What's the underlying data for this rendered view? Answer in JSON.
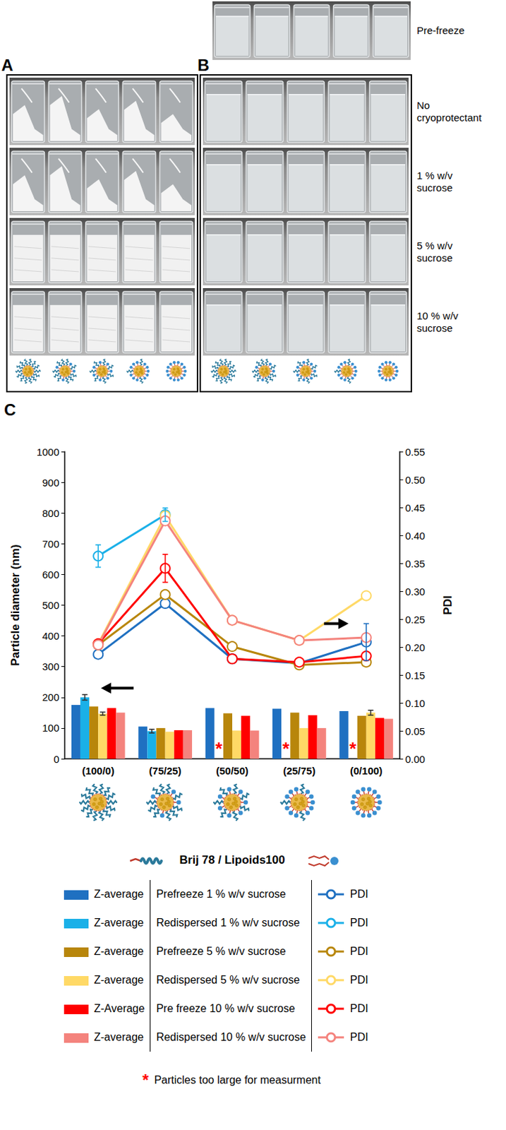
{
  "photos": {
    "top_label": "Pre-freeze",
    "panels": [
      "A",
      "B"
    ],
    "row_labels": [
      "No cryoprotectant",
      "1 % w/v sucrose",
      "5 % w/v sucrose",
      "10 % w/v sucrose"
    ]
  },
  "chart_data": {
    "panel": "C",
    "type": "bar",
    "categories": [
      "(100/0)",
      "(75/25)",
      "(50/50)",
      "(25/75)",
      "(0/100)"
    ],
    "xlabel": "Brij 78 / Lipoids100",
    "ylabel": "Particle diameter (nm)",
    "y2label": "PDI",
    "ylim": [
      0,
      1000
    ],
    "yticks": [
      0,
      100,
      200,
      300,
      400,
      500,
      600,
      700,
      800,
      900,
      1000
    ],
    "y2lim": [
      0,
      0.55
    ],
    "y2ticks": [
      {
        "value": 0,
        "label": "0.00"
      },
      0.05,
      {
        "value": 0.1,
        "label": "0.10"
      },
      0.15,
      {
        "value": 0.2,
        "label": "0.20"
      },
      0.25,
      {
        "value": 0.3,
        "label": "0.30"
      },
      0.35,
      {
        "value": 0.4,
        "label": "0.40"
      },
      0.45,
      {
        "value": 0.5,
        "label": "0.50"
      },
      0.55
    ],
    "grid": false,
    "legend": "bottom",
    "series": [
      {
        "name": "Prefreeze 1 % w/v sucrose",
        "legend_label": "Z-average",
        "type": "bar",
        "color": "#1f70c1",
        "values": [
          175,
          105,
          165,
          163,
          155
        ]
      },
      {
        "name": "Redispersed 1 % w/v sucrose",
        "legend_label": "Z-average",
        "type": "bar",
        "color": "#1ab0e8",
        "values": [
          200,
          90,
          null,
          null,
          null
        ],
        "errors": [
          9,
          6,
          null,
          null,
          null
        ]
      },
      {
        "name": "Prefreeze 5 % w/v sucrose",
        "legend_label": "Z-average",
        "type": "bar",
        "color": "#b8860b",
        "values": [
          170,
          100,
          148,
          150,
          140
        ]
      },
      {
        "name": "Redispersed 5 % w/v sucrose",
        "legend_label": "Z-average",
        "type": "bar",
        "color": "#ffd966",
        "values": [
          147,
          88,
          92,
          100,
          150
        ],
        "errors": [
          5,
          null,
          null,
          null,
          8
        ]
      },
      {
        "name": "Pre freeze 10 % w/v sucrose",
        "legend_label": "Z-Average",
        "type": "bar",
        "color": "#ff0000",
        "values": [
          165,
          93,
          140,
          142,
          133
        ]
      },
      {
        "name": "Redispersed 10 % w/v sucrose",
        "legend_label": "Z-average",
        "type": "bar",
        "color": "#f4837d",
        "values": [
          150,
          93,
          92,
          100,
          130
        ]
      },
      {
        "name": "Prefreeze 1 % w/v sucrose",
        "legend_label": "PDI",
        "type": "line",
        "axis": "y2",
        "marker": "circle",
        "color": "#1f70c1",
        "values": [
          0.187,
          0.278,
          0.179,
          0.171,
          0.209
        ],
        "errors": [
          null,
          null,
          null,
          null,
          0.033
        ]
      },
      {
        "name": "Redispersed 1 % w/v sucrose",
        "legend_label": "PDI",
        "type": "line",
        "axis": "y2",
        "marker": "circle",
        "color": "#1ab0e8",
        "values": [
          0.363,
          0.437,
          null,
          null,
          null
        ],
        "errors": [
          0.02,
          0.012,
          null,
          null,
          null
        ]
      },
      {
        "name": "Prefreeze 5 % w/v sucrose",
        "legend_label": "PDI",
        "type": "line",
        "axis": "y2",
        "marker": "circle",
        "color": "#b8860b",
        "values": [
          0.204,
          0.294,
          0.201,
          0.168,
          0.173
        ]
      },
      {
        "name": "Redispersed 5 % w/v sucrose",
        "legend_label": "PDI",
        "type": "line",
        "axis": "y2",
        "marker": "circle",
        "color": "#ffd966",
        "values": [
          0.206,
          0.435,
          0.248,
          0.212,
          0.292
        ]
      },
      {
        "name": "Pre freeze 10 % w/v sucrose",
        "legend_label": "PDI",
        "type": "line",
        "axis": "y2",
        "marker": "circle",
        "color": "#ff0000",
        "values": [
          0.206,
          0.341,
          0.179,
          0.173,
          0.184
        ],
        "errors": [
          null,
          0.025,
          null,
          null,
          null
        ]
      },
      {
        "name": "Redispersed 10 % w/v sucrose",
        "legend_label": "PDI",
        "type": "line",
        "axis": "y2",
        "marker": "circle",
        "color": "#f4837d",
        "values": [
          0.204,
          0.426,
          0.248,
          0.212,
          0.217
        ]
      }
    ],
    "annotations": [
      {
        "text": "*",
        "series": "Redispersed 1 % w/v sucrose",
        "categories": [
          "(50/50)",
          "(25/75)",
          "(0/100)"
        ],
        "color": "#ff0000"
      }
    ],
    "note": {
      "symbol": "*",
      "text": "Particles too large for measurment"
    }
  }
}
